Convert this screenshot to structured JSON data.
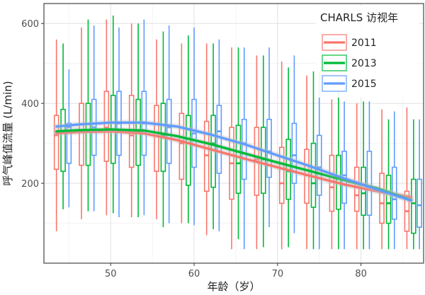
{
  "chart_data": {
    "type": "boxplot",
    "xlabel": "年龄（岁）",
    "ylabel": "呼气峰值流量 (L/min)",
    "xlim": [
      42,
      87.5
    ],
    "ylim": [
      0,
      650
    ],
    "x_ticks": [
      50,
      60,
      70,
      80
    ],
    "y_ticks": [
      200,
      400,
      600
    ],
    "grid": true,
    "legend": {
      "title": "CHARLS 访视年",
      "position": "top-right",
      "entries": [
        "2011",
        "2013",
        "2015"
      ]
    },
    "colors": {
      "2011": "#F8766D",
      "2013": "#00BA38",
      "2015": "#619CFF"
    },
    "series": [
      {
        "name": "2011",
        "boxes": [
          {
            "x": 43.5,
            "min": 80,
            "q1": 235,
            "median": 320,
            "q3": 370,
            "max": 560
          },
          {
            "x": 46.5,
            "min": 110,
            "q1": 245,
            "median": 330,
            "q3": 400,
            "max": 590
          },
          {
            "x": 49.5,
            "min": 120,
            "q1": 255,
            "median": 340,
            "q3": 430,
            "max": 610
          },
          {
            "x": 52.5,
            "min": 115,
            "q1": 240,
            "median": 320,
            "q3": 420,
            "max": 600
          },
          {
            "x": 55.5,
            "min": 110,
            "q1": 230,
            "median": 320,
            "q3": 395,
            "max": 560
          },
          {
            "x": 58.5,
            "min": 100,
            "q1": 210,
            "median": 300,
            "q3": 375,
            "max": 550
          },
          {
            "x": 61.5,
            "min": 70,
            "q1": 180,
            "median": 270,
            "q3": 355,
            "max": 550
          },
          {
            "x": 64.5,
            "min": 35,
            "q1": 160,
            "median": 250,
            "q3": 340,
            "max": 540
          },
          {
            "x": 67.5,
            "min": 35,
            "q1": 170,
            "median": 260,
            "q3": 340,
            "max": 520
          },
          {
            "x": 70.5,
            "min": 35,
            "q1": 150,
            "median": 200,
            "q3": 290,
            "max": 505
          },
          {
            "x": 73.5,
            "min": 35,
            "q1": 150,
            "median": 220,
            "q3": 285,
            "max": 470
          },
          {
            "x": 76.5,
            "min": 35,
            "q1": 130,
            "median": 190,
            "q3": 270,
            "max": 410
          },
          {
            "x": 79.5,
            "min": 35,
            "q1": 130,
            "median": 170,
            "q3": 240,
            "max": 400
          },
          {
            "x": 82.5,
            "min": 35,
            "q1": 100,
            "median": 150,
            "q3": 225,
            "max": 385
          },
          {
            "x": 85.5,
            "min": 35,
            "q1": 80,
            "median": 130,
            "q3": 180,
            "max": 390
          }
        ],
        "trend": [
          [
            43.5,
            325
          ],
          [
            46,
            328
          ],
          [
            50,
            330
          ],
          [
            54,
            325
          ],
          [
            58,
            308
          ],
          [
            62,
            285
          ],
          [
            66,
            262
          ],
          [
            70,
            240
          ],
          [
            74,
            218
          ],
          [
            78,
            197
          ],
          [
            82,
            180
          ],
          [
            86,
            165
          ]
        ]
      },
      {
        "name": "2013",
        "boxes": [
          {
            "x": 44.3,
            "min": 135,
            "q1": 230,
            "median": 330,
            "q3": 385,
            "max": 550
          },
          {
            "x": 47.3,
            "min": 130,
            "q1": 245,
            "median": 330,
            "q3": 400,
            "max": 610
          },
          {
            "x": 50.3,
            "min": 125,
            "q1": 250,
            "median": 330,
            "q3": 420,
            "max": 620
          },
          {
            "x": 53.3,
            "min": 115,
            "q1": 245,
            "median": 330,
            "q3": 410,
            "max": 600
          },
          {
            "x": 56.3,
            "min": 90,
            "q1": 230,
            "median": 320,
            "q3": 400,
            "max": 580
          },
          {
            "x": 59.3,
            "min": 100,
            "q1": 195,
            "median": 300,
            "q3": 370,
            "max": 570
          },
          {
            "x": 62.3,
            "min": 85,
            "q1": 190,
            "median": 300,
            "q3": 370,
            "max": 550
          },
          {
            "x": 65.3,
            "min": 60,
            "q1": 175,
            "median": 250,
            "q3": 345,
            "max": 540
          },
          {
            "x": 68.3,
            "min": 40,
            "q1": 175,
            "median": 260,
            "q3": 340,
            "max": 520
          },
          {
            "x": 71.3,
            "min": 40,
            "q1": 160,
            "median": 230,
            "q3": 310,
            "max": 490
          },
          {
            "x": 74.3,
            "min": 35,
            "q1": 140,
            "median": 200,
            "q3": 300,
            "max": 480
          },
          {
            "x": 77.3,
            "min": 35,
            "q1": 135,
            "median": 215,
            "q3": 270,
            "max": 460
          },
          {
            "x": 80.3,
            "min": 35,
            "q1": 120,
            "median": 175,
            "q3": 240,
            "max": 405
          },
          {
            "x": 83.3,
            "min": 35,
            "q1": 100,
            "median": 150,
            "q3": 220,
            "max": 360
          },
          {
            "x": 86.3,
            "min": 35,
            "q1": 75,
            "median": 150,
            "q3": 210,
            "max": 360
          }
        ],
        "trend": [
          [
            43.5,
            330
          ],
          [
            46,
            333
          ],
          [
            50,
            335
          ],
          [
            54,
            332
          ],
          [
            58,
            318
          ],
          [
            62,
            298
          ],
          [
            66,
            275
          ],
          [
            70,
            252
          ],
          [
            74,
            230
          ],
          [
            78,
            208
          ],
          [
            82,
            187
          ],
          [
            86,
            158
          ]
        ]
      },
      {
        "name": "2015",
        "boxes": [
          {
            "x": 45.0,
            "min": 140,
            "q1": 250,
            "median": 340,
            "q3": 350,
            "max": 485
          },
          {
            "x": 48.0,
            "min": 130,
            "q1": 270,
            "median": 340,
            "q3": 410,
            "max": 595
          },
          {
            "x": 51.0,
            "min": 115,
            "q1": 270,
            "median": 350,
            "q3": 430,
            "max": 590
          },
          {
            "x": 54.0,
            "min": 120,
            "q1": 270,
            "median": 350,
            "q3": 430,
            "max": 610
          },
          {
            "x": 57.0,
            "min": 100,
            "q1": 250,
            "median": 340,
            "q3": 410,
            "max": 595
          },
          {
            "x": 60.0,
            "min": 95,
            "q1": 240,
            "median": 325,
            "q3": 410,
            "max": 590
          },
          {
            "x": 63.0,
            "min": 80,
            "q1": 225,
            "median": 330,
            "q3": 395,
            "max": 560
          },
          {
            "x": 66.0,
            "min": 35,
            "q1": 210,
            "median": 300,
            "q3": 360,
            "max": 540
          },
          {
            "x": 69.0,
            "min": 90,
            "q1": 215,
            "median": 280,
            "q3": 360,
            "max": 540
          },
          {
            "x": 72.0,
            "min": 75,
            "q1": 200,
            "median": 270,
            "q3": 350,
            "max": 520
          },
          {
            "x": 75.0,
            "min": 35,
            "q1": 170,
            "median": 240,
            "q3": 320,
            "max": 480
          },
          {
            "x": 78.0,
            "min": 35,
            "q1": 150,
            "median": 220,
            "q3": 280,
            "max": 405
          },
          {
            "x": 81.0,
            "min": 35,
            "q1": 120,
            "median": 190,
            "q3": 280,
            "max": 405
          },
          {
            "x": 84.0,
            "min": 35,
            "q1": 110,
            "median": 160,
            "q3": 240,
            "max": 380
          },
          {
            "x": 87.0,
            "min": 35,
            "q1": 90,
            "median": 145,
            "q3": 210,
            "max": 360
          }
        ],
        "trend": [
          [
            43.5,
            342
          ],
          [
            46,
            347
          ],
          [
            50,
            352
          ],
          [
            54,
            352
          ],
          [
            58,
            342
          ],
          [
            62,
            322
          ],
          [
            66,
            298
          ],
          [
            70,
            270
          ],
          [
            74,
            242
          ],
          [
            78,
            212
          ],
          [
            82,
            184
          ],
          [
            86,
            157
          ]
        ]
      }
    ]
  }
}
